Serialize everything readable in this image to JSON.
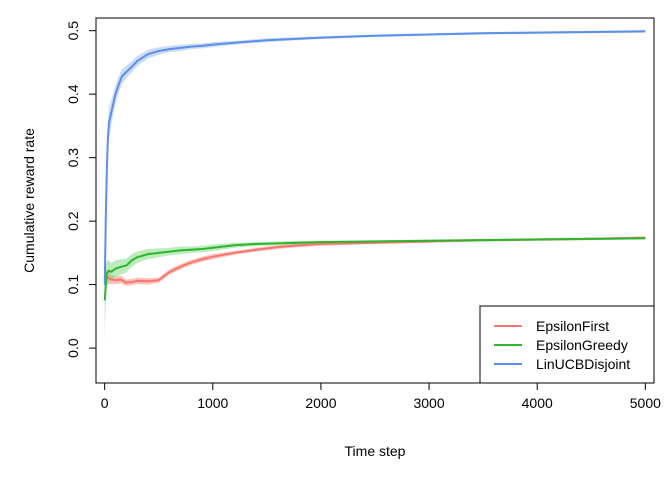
{
  "chart_data": {
    "type": "line",
    "xlabel": "Time step",
    "ylabel": "Cumulative reward rate",
    "xlim": [
      -80,
      5080
    ],
    "ylim": [
      -0.055,
      0.52
    ],
    "xticks": [
      0,
      1000,
      2000,
      3000,
      4000,
      5000
    ],
    "xtick_labels": [
      "0",
      "1000",
      "2000",
      "3000",
      "4000",
      "5000"
    ],
    "yticks": [
      0.0,
      0.1,
      0.2,
      0.3,
      0.4,
      0.5
    ],
    "ytick_labels": [
      "0.0",
      "0.1",
      "0.2",
      "0.3",
      "0.4",
      "0.5"
    ],
    "grid": false,
    "legend": {
      "position": "bottom-right"
    },
    "series": [
      {
        "name": "EpsilonFirst",
        "color": "#F8766D",
        "band_color": "#F8766D",
        "x": [
          1,
          10,
          20,
          40,
          60,
          100,
          150,
          200,
          250,
          300,
          400,
          500,
          600,
          700,
          800,
          900,
          1000,
          1200,
          1400,
          1600,
          1800,
          2000,
          2500,
          3000,
          3500,
          4000,
          4500,
          5000
        ],
        "y": [
          0.11,
          0.105,
          0.112,
          0.11,
          0.108,
          0.107,
          0.108,
          0.103,
          0.104,
          0.106,
          0.105,
          0.107,
          0.12,
          0.128,
          0.135,
          0.14,
          0.144,
          0.15,
          0.155,
          0.159,
          0.162,
          0.164,
          0.166,
          0.168,
          0.17,
          0.171,
          0.172,
          0.174
        ],
        "lower": [
          0.08,
          0.088,
          0.1,
          0.101,
          0.101,
          0.101,
          0.102,
          0.098,
          0.099,
          0.101,
          0.1,
          0.103,
          0.116,
          0.124,
          0.131,
          0.136,
          0.14,
          0.147,
          0.152,
          0.156,
          0.159,
          0.161,
          0.164,
          0.166,
          0.168,
          0.169,
          0.17,
          0.172
        ],
        "upper": [
          0.14,
          0.122,
          0.124,
          0.119,
          0.115,
          0.113,
          0.114,
          0.108,
          0.109,
          0.111,
          0.11,
          0.111,
          0.124,
          0.132,
          0.139,
          0.144,
          0.148,
          0.153,
          0.158,
          0.162,
          0.165,
          0.167,
          0.168,
          0.17,
          0.172,
          0.173,
          0.174,
          0.176
        ]
      },
      {
        "name": "EpsilonGreedy",
        "color": "#2DB52D",
        "band_color": "#6BD46B",
        "x": [
          1,
          10,
          20,
          40,
          60,
          100,
          150,
          200,
          250,
          300,
          400,
          500,
          600,
          700,
          800,
          900,
          1000,
          1200,
          1400,
          1600,
          1800,
          2000,
          2500,
          3000,
          3500,
          4000,
          4500,
          5000
        ],
        "y": [
          0.075,
          0.1,
          0.118,
          0.122,
          0.12,
          0.125,
          0.128,
          0.13,
          0.138,
          0.143,
          0.148,
          0.15,
          0.152,
          0.154,
          0.155,
          0.156,
          0.158,
          0.162,
          0.164,
          0.165,
          0.166,
          0.167,
          0.168,
          0.169,
          0.17,
          0.171,
          0.172,
          0.173
        ],
        "lower": [
          0.03,
          0.072,
          0.098,
          0.106,
          0.106,
          0.112,
          0.116,
          0.119,
          0.128,
          0.134,
          0.14,
          0.143,
          0.146,
          0.148,
          0.15,
          0.151,
          0.153,
          0.158,
          0.161,
          0.162,
          0.163,
          0.165,
          0.166,
          0.167,
          0.168,
          0.169,
          0.17,
          0.171
        ],
        "upper": [
          0.12,
          0.128,
          0.138,
          0.138,
          0.134,
          0.138,
          0.14,
          0.141,
          0.148,
          0.152,
          0.156,
          0.157,
          0.158,
          0.16,
          0.16,
          0.161,
          0.163,
          0.166,
          0.167,
          0.168,
          0.169,
          0.169,
          0.17,
          0.171,
          0.172,
          0.173,
          0.174,
          0.175
        ]
      },
      {
        "name": "LinUCBDisjoint",
        "color": "#5B8FE8",
        "band_color": "#8FB2F0",
        "x": [
          1,
          10,
          20,
          30,
          40,
          60,
          80,
          100,
          130,
          160,
          200,
          250,
          300,
          400,
          500,
          600,
          700,
          800,
          900,
          1000,
          1200,
          1500,
          2000,
          2500,
          3000,
          3500,
          4000,
          4500,
          5000
        ],
        "y": [
          0.1,
          0.2,
          0.28,
          0.33,
          0.355,
          0.37,
          0.385,
          0.4,
          0.415,
          0.428,
          0.435,
          0.443,
          0.452,
          0.463,
          0.468,
          0.471,
          0.473,
          0.475,
          0.476,
          0.478,
          0.481,
          0.485,
          0.489,
          0.492,
          0.494,
          0.496,
          0.497,
          0.498,
          0.499
        ],
        "lower": [
          0.0,
          0.15,
          0.24,
          0.3,
          0.33,
          0.35,
          0.368,
          0.385,
          0.402,
          0.416,
          0.425,
          0.434,
          0.444,
          0.456,
          0.462,
          0.466,
          0.468,
          0.471,
          0.472,
          0.474,
          0.478,
          0.482,
          0.487,
          0.49,
          0.492,
          0.494,
          0.495,
          0.496,
          0.497
        ],
        "upper": [
          0.2,
          0.25,
          0.32,
          0.36,
          0.38,
          0.39,
          0.402,
          0.415,
          0.428,
          0.44,
          0.445,
          0.452,
          0.46,
          0.47,
          0.474,
          0.476,
          0.478,
          0.479,
          0.48,
          0.482,
          0.484,
          0.488,
          0.491,
          0.494,
          0.496,
          0.498,
          0.499,
          0.5,
          0.501
        ]
      }
    ]
  }
}
